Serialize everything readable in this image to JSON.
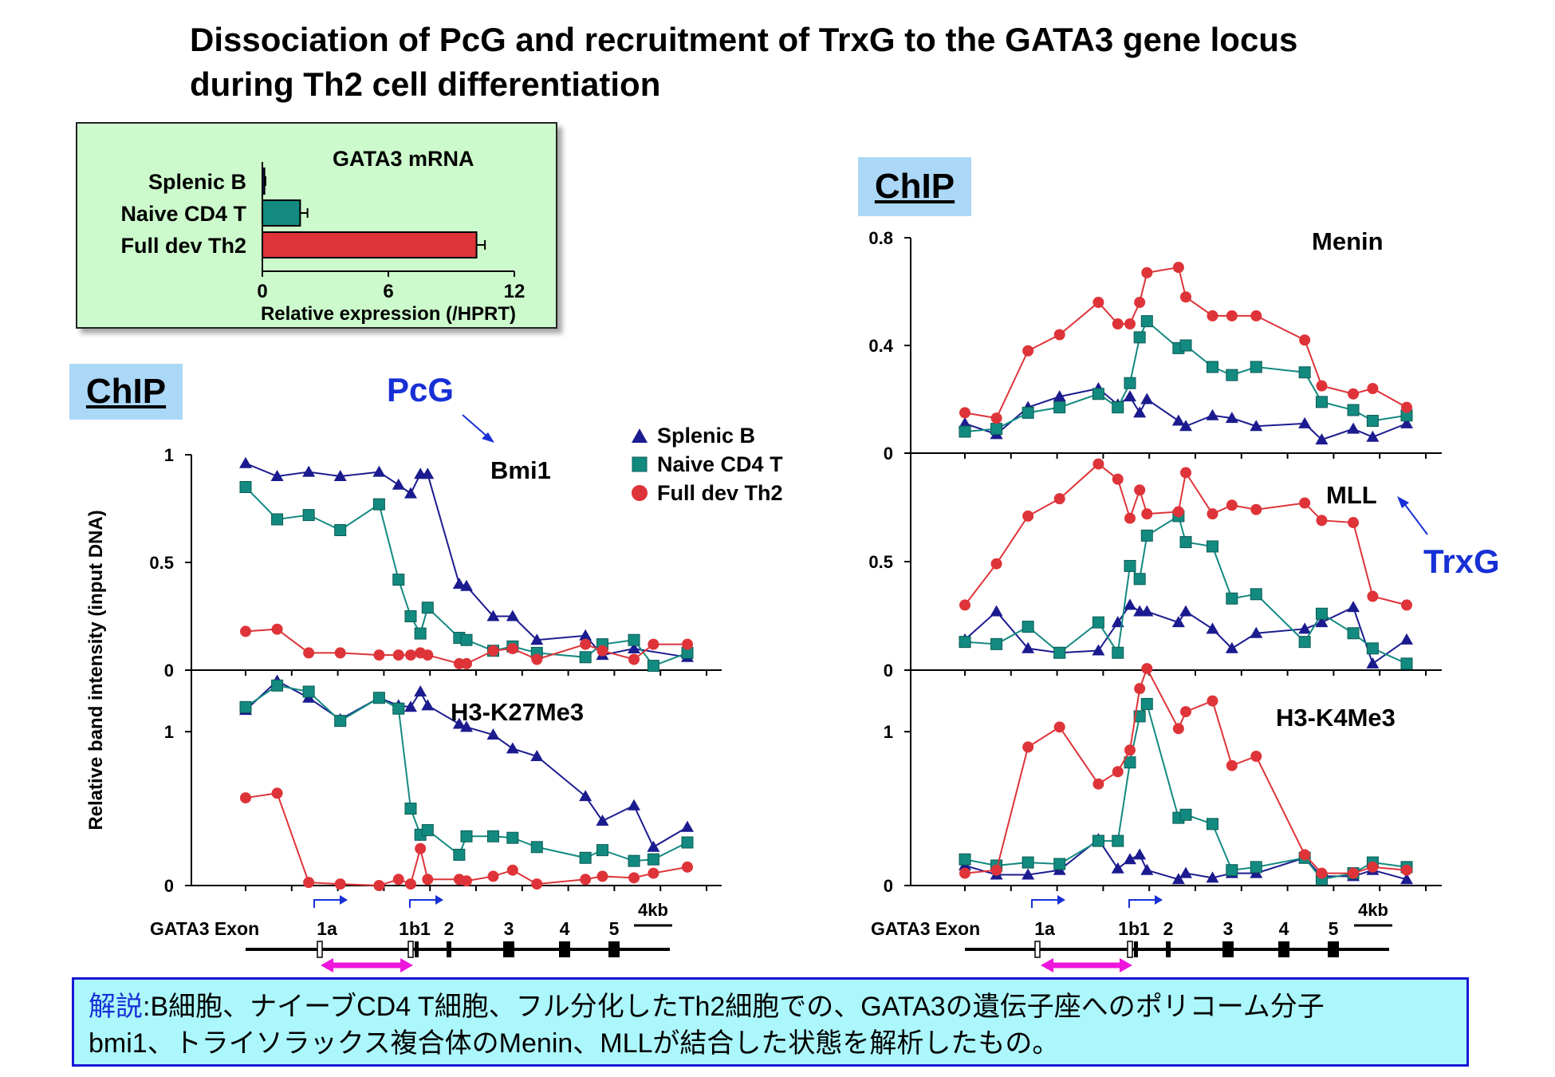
{
  "title": {
    "line1": "Dissociation of PcG and recruitment of TrxG to the GATA3 gene locus",
    "line2": "during Th2 cell differentiation"
  },
  "colors": {
    "splenic_b": "#1b1b8f",
    "naive_cd4": "#138a80",
    "full_th2": "#de3439",
    "annot_blue": "#1730d6",
    "chip_bg": "#acd8f7",
    "inset_bg": "#ccfacc",
    "note_bg": "#acf7fb",
    "magenta": "#ee16dd"
  },
  "chip_label": "ChIP",
  "annotations": {
    "pcg": "PcG",
    "trxg": "TrxG"
  },
  "legend": [
    "Splenic B",
    "Naive CD4 T",
    "Full dev Th2"
  ],
  "y_axis_label": "Relative band intensity (input DNA)",
  "gene_map": {
    "label": "GATA3 Exon",
    "exons": [
      "1a",
      "1b1",
      "2",
      "3",
      "4",
      "5"
    ],
    "scale": "4kb"
  },
  "note": {
    "heading": "解説",
    "text1": ":B細胞、ナイーブCD4 T細胞、フル分化したTh2細胞での、GATA3の遺伝子座へのポリコーム分子",
    "text2": "bmi1、トライソラックス複合体のMenin、MLLが結合した状態を解析したもの。"
  },
  "chart_data": [
    {
      "type": "bar",
      "title": "GATA3 mRNA",
      "xlabel": "Relative expression (/HPRT)",
      "categories": [
        "Splenic B",
        "Naive CD4 T",
        "Full dev Th2"
      ],
      "values": [
        0.1,
        1.8,
        10.2
      ],
      "errors": [
        0.05,
        0.35,
        0.4
      ],
      "xlim": [
        0,
        12
      ],
      "xticks": [
        "0",
        "6",
        "12"
      ]
    },
    {
      "type": "line",
      "title": "Bmi1",
      "ylim": [
        0,
        1.0
      ],
      "yticks": [
        "0",
        "0.5",
        "1"
      ],
      "series": [
        {
          "name": "Splenic B",
          "x": [
            0,
            1.3,
            2.6,
            3.9,
            5.5,
            6.3,
            6.8,
            7.2,
            7.5,
            8.8,
            9.1,
            10.2,
            11.0,
            12.0,
            14.0,
            14.7,
            16.0,
            18.2
          ],
          "y": [
            0.96,
            0.9,
            0.92,
            0.9,
            0.92,
            0.86,
            0.82,
            0.91,
            0.91,
            0.4,
            0.39,
            0.25,
            0.25,
            0.14,
            0.16,
            0.07,
            0.1,
            0.06
          ]
        },
        {
          "name": "Naive CD4 T",
          "x": [
            0,
            1.3,
            2.6,
            3.9,
            5.5,
            6.3,
            6.8,
            7.2,
            7.5,
            8.8,
            9.1,
            10.2,
            11.0,
            12.0,
            14.0,
            14.7,
            16.0,
            16.8,
            18.2
          ],
          "y": [
            0.85,
            0.7,
            0.72,
            0.65,
            0.77,
            0.42,
            0.25,
            0.17,
            0.29,
            0.15,
            0.14,
            0.09,
            0.11,
            0.08,
            0.06,
            0.12,
            0.14,
            0.02,
            0.08
          ]
        },
        {
          "name": "Full dev Th2",
          "x": [
            0,
            1.3,
            2.6,
            3.9,
            5.5,
            6.3,
            6.8,
            7.2,
            7.5,
            8.8,
            9.1,
            10.2,
            11.0,
            12.0,
            14.0,
            14.7,
            16.0,
            16.8,
            18.2
          ],
          "y": [
            0.18,
            0.19,
            0.08,
            0.08,
            0.07,
            0.07,
            0.07,
            0.08,
            0.07,
            0.03,
            0.03,
            0.09,
            0.1,
            0.05,
            0.12,
            0.09,
            0.05,
            0.12,
            0.12
          ]
        }
      ]
    },
    {
      "type": "line",
      "title": "H3-K27Me3",
      "ylim": [
        0,
        1.4
      ],
      "yticks": [
        "0",
        "1"
      ],
      "series": [
        {
          "name": "Splenic B",
          "x": [
            0,
            1.3,
            2.6,
            3.9,
            5.5,
            6.3,
            6.8,
            7.2,
            7.5,
            8.8,
            9.1,
            10.2,
            11.0,
            12.0,
            14.0,
            14.7,
            16.0,
            16.8,
            18.2
          ],
          "y": [
            1.14,
            1.33,
            1.22,
            1.08,
            1.22,
            1.17,
            1.16,
            1.26,
            1.17,
            1.05,
            1.03,
            0.98,
            0.89,
            0.84,
            0.58,
            0.42,
            0.52,
            0.25,
            0.38
          ]
        },
        {
          "name": "Naive CD4 T",
          "x": [
            0,
            1.3,
            2.6,
            3.9,
            5.5,
            6.3,
            6.8,
            7.2,
            7.5,
            8.8,
            9.1,
            10.2,
            11.0,
            12.0,
            14.0,
            14.7,
            16.0,
            16.8,
            18.2
          ],
          "y": [
            1.16,
            1.3,
            1.26,
            1.07,
            1.22,
            1.15,
            0.5,
            0.33,
            0.36,
            0.2,
            0.32,
            0.32,
            0.31,
            0.25,
            0.18,
            0.23,
            0.16,
            0.17,
            0.28
          ]
        },
        {
          "name": "Full dev Th2",
          "x": [
            0,
            1.3,
            2.6,
            3.9,
            5.5,
            6.3,
            6.8,
            7.2,
            7.5,
            8.8,
            9.1,
            10.2,
            11.0,
            12.0,
            14.0,
            14.7,
            16.0,
            16.8,
            18.2
          ],
          "y": [
            0.57,
            0.6,
            0.02,
            0.01,
            0.0,
            0.04,
            0.01,
            0.24,
            0.04,
            0.04,
            0.03,
            0.06,
            0.1,
            0.01,
            0.04,
            0.06,
            0.05,
            0.08,
            0.12
          ]
        }
      ]
    },
    {
      "type": "line",
      "title": "Menin",
      "ylim": [
        0,
        0.8
      ],
      "yticks": [
        "0",
        "0.4",
        "0.8"
      ],
      "series": [
        {
          "name": "Splenic B",
          "x": [
            0,
            1.3,
            2.6,
            3.9,
            5.5,
            6.3,
            6.8,
            7.2,
            7.5,
            8.8,
            9.1,
            10.2,
            11.0,
            12.0,
            14.0,
            14.7,
            16.0,
            16.8,
            18.2
          ],
          "y": [
            0.11,
            0.07,
            0.17,
            0.21,
            0.24,
            0.18,
            0.21,
            0.15,
            0.2,
            0.12,
            0.1,
            0.14,
            0.13,
            0.1,
            0.11,
            0.05,
            0.09,
            0.06,
            0.11
          ]
        },
        {
          "name": "Naive CD4 T",
          "x": [
            0,
            1.3,
            2.6,
            3.9,
            5.5,
            6.3,
            6.8,
            7.2,
            7.5,
            8.8,
            9.1,
            10.2,
            11.0,
            12.0,
            14.0,
            14.7,
            16.0,
            16.8,
            18.2
          ],
          "y": [
            0.08,
            0.09,
            0.15,
            0.17,
            0.22,
            0.17,
            0.26,
            0.43,
            0.49,
            0.39,
            0.4,
            0.32,
            0.29,
            0.32,
            0.3,
            0.19,
            0.16,
            0.12,
            0.14
          ]
        },
        {
          "name": "Full dev Th2",
          "x": [
            0,
            1.3,
            2.6,
            3.9,
            5.5,
            6.3,
            6.8,
            7.2,
            7.5,
            8.8,
            9.1,
            10.2,
            11.0,
            12.0,
            14.0,
            14.7,
            16.0,
            16.8,
            18.2
          ],
          "y": [
            0.15,
            0.13,
            0.38,
            0.44,
            0.56,
            0.48,
            0.48,
            0.56,
            0.67,
            0.69,
            0.58,
            0.51,
            0.51,
            0.51,
            0.42,
            0.25,
            0.22,
            0.24,
            0.17
          ]
        }
      ]
    },
    {
      "type": "line",
      "title": "MLL",
      "ylim": [
        0,
        1.0
      ],
      "yticks": [
        "0",
        "0.5"
      ],
      "series": [
        {
          "name": "Splenic B",
          "x": [
            0,
            1.3,
            2.6,
            3.9,
            5.5,
            6.3,
            6.8,
            7.2,
            7.5,
            8.8,
            9.1,
            10.2,
            11.0,
            12.0,
            14.0,
            14.7,
            16.0,
            16.8,
            18.2
          ],
          "y": [
            0.14,
            0.27,
            0.1,
            0.08,
            0.09,
            0.22,
            0.3,
            0.27,
            0.27,
            0.22,
            0.27,
            0.19,
            0.1,
            0.17,
            0.19,
            0.22,
            0.29,
            0.03,
            0.14
          ]
        },
        {
          "name": "Naive CD4 T",
          "x": [
            0,
            1.3,
            2.6,
            3.9,
            5.5,
            6.3,
            6.8,
            7.2,
            7.5,
            8.8,
            9.1,
            10.2,
            11.0,
            12.0,
            14.0,
            14.7,
            16.0,
            16.8,
            18.2
          ],
          "y": [
            0.13,
            0.12,
            0.2,
            0.08,
            0.22,
            0.08,
            0.48,
            0.42,
            0.62,
            0.71,
            0.59,
            0.57,
            0.33,
            0.35,
            0.13,
            0.26,
            0.17,
            0.1,
            0.03
          ]
        },
        {
          "name": "Full dev Th2",
          "x": [
            0,
            1.3,
            2.6,
            3.9,
            5.5,
            6.3,
            6.8,
            7.2,
            7.5,
            8.8,
            9.1,
            10.2,
            11.0,
            12.0,
            14.0,
            14.7,
            16.0,
            16.8,
            18.2
          ],
          "y": [
            0.3,
            0.49,
            0.71,
            0.79,
            0.95,
            0.88,
            0.7,
            0.83,
            0.72,
            0.73,
            0.91,
            0.72,
            0.76,
            0.74,
            0.77,
            0.69,
            0.68,
            0.34,
            0.3
          ]
        }
      ]
    },
    {
      "type": "line",
      "title": "H3-K4Me3",
      "ylim": [
        0,
        1.4
      ],
      "yticks": [
        "0",
        "1"
      ],
      "series": [
        {
          "name": "Splenic B",
          "x": [
            0,
            1.3,
            2.6,
            3.9,
            5.5,
            6.3,
            6.8,
            7.2,
            7.5,
            8.8,
            9.1,
            10.2,
            11.0,
            12.0,
            14.0,
            14.7,
            16.0,
            16.8,
            18.2
          ],
          "y": [
            0.13,
            0.07,
            0.07,
            0.1,
            0.3,
            0.11,
            0.17,
            0.2,
            0.1,
            0.04,
            0.08,
            0.05,
            0.08,
            0.08,
            0.18,
            0.06,
            0.06,
            0.1,
            0.04
          ]
        },
        {
          "name": "Naive CD4 T",
          "x": [
            0,
            1.3,
            2.6,
            3.9,
            5.5,
            6.3,
            6.8,
            7.2,
            7.5,
            8.8,
            9.1,
            10.2,
            11.0,
            12.0,
            14.0,
            14.7,
            16.0,
            16.8,
            18.2
          ],
          "y": [
            0.17,
            0.13,
            0.15,
            0.14,
            0.29,
            0.29,
            0.8,
            1.1,
            1.18,
            0.44,
            0.46,
            0.4,
            0.1,
            0.12,
            0.18,
            0.04,
            0.08,
            0.15,
            0.12
          ]
        },
        {
          "name": "Full dev Th2",
          "x": [
            0,
            1.3,
            2.6,
            3.9,
            5.5,
            6.3,
            6.8,
            7.2,
            7.5,
            8.8,
            9.1,
            10.2,
            11.0,
            12.0,
            14.0,
            14.7,
            16.0,
            16.8,
            18.2
          ],
          "y": [
            0.08,
            0.1,
            0.9,
            1.03,
            0.66,
            0.74,
            0.88,
            1.28,
            1.41,
            1.02,
            1.13,
            1.2,
            0.78,
            0.84,
            0.2,
            0.08,
            0.08,
            0.12,
            0.1
          ]
        }
      ]
    }
  ]
}
